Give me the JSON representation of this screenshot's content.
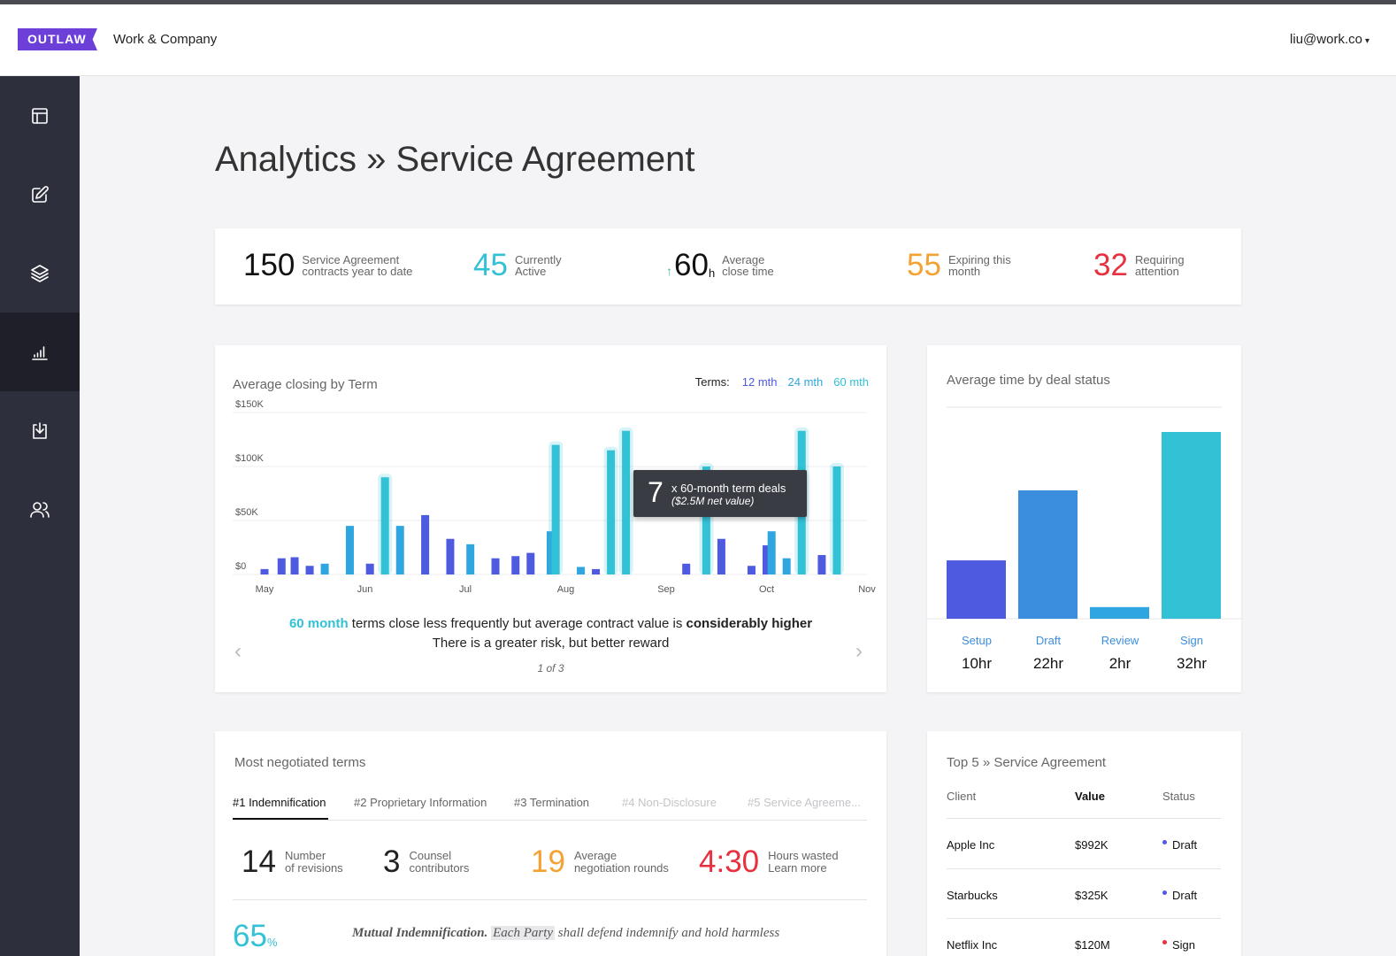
{
  "header": {
    "logo": "OUTLAW",
    "company": "Work & Company",
    "user": "liu@work.co",
    "user_caret": "▾"
  },
  "sidebar": {
    "items": [
      {
        "icon": "layout-icon"
      },
      {
        "icon": "edit-icon"
      },
      {
        "icon": "layers-icon"
      },
      {
        "icon": "analytics-icon",
        "active": true
      },
      {
        "icon": "download-icon"
      },
      {
        "icon": "users-icon"
      }
    ]
  },
  "page": {
    "title": "Analytics » Service Agreement"
  },
  "kpis": [
    {
      "value": "150",
      "label": "Service Agreement contracts year to date",
      "color": "#111111"
    },
    {
      "value": "45",
      "label": "Currently Active",
      "color": "#33c1d6"
    },
    {
      "value": "60",
      "unit": "h",
      "arrow": "↑",
      "label": "Average close time",
      "color": "#111111"
    },
    {
      "value": "55",
      "label": "Expiring this month",
      "color": "#f4a233"
    },
    {
      "value": "32",
      "label": "Requiring attention",
      "color": "#e8303f"
    }
  ],
  "closing_chart": {
    "title": "Average closing by Term",
    "terms_label": "Terms:",
    "terms": [
      {
        "label": "12 mth",
        "color": "#4e5ae0"
      },
      {
        "label": "24 mth",
        "color": "#2fa6e0"
      },
      {
        "label": "60 mth",
        "color": "#33c1d6"
      }
    ],
    "insight_highlight": "60 month",
    "insight_mid": " terms close less frequently but average contract value is ",
    "insight_bold": "considerably higher",
    "insight_line2": "There is a greater risk, but better reward",
    "pager": "1 of 3",
    "prev": "‹",
    "next": "›",
    "tooltip": {
      "count": "7",
      "line1": "x 60-month term deals",
      "line2": "($2.5M net value)"
    }
  },
  "chart_data": [
    {
      "type": "bar",
      "title": "Average closing by Term",
      "x": [
        "May",
        "Jun",
        "Jul",
        "Aug",
        "Sep",
        "Oct",
        "Nov"
      ],
      "y_ticks": [
        "$0",
        "$50K",
        "$100K",
        "$150K"
      ],
      "ylim": [
        0,
        150000
      ],
      "grid": true,
      "legend": "top-right",
      "series": [
        {
          "name": "12 mth",
          "color": "#4e5ae0",
          "points": [
            {
              "t": 0.0,
              "v": 5000
            },
            {
              "t": 0.17,
              "v": 15000
            },
            {
              "t": 0.3,
              "v": 16000
            },
            {
              "t": 0.45,
              "v": 8000
            },
            {
              "t": 1.05,
              "v": 10000
            },
            {
              "t": 1.6,
              "v": 55000
            },
            {
              "t": 1.85,
              "v": 33000
            },
            {
              "t": 2.3,
              "v": 15000
            },
            {
              "t": 2.5,
              "v": 17000
            },
            {
              "t": 2.65,
              "v": 20000
            },
            {
              "t": 3.3,
              "v": 5000
            },
            {
              "t": 4.2,
              "v": 10000
            },
            {
              "t": 4.55,
              "v": 33000
            },
            {
              "t": 4.85,
              "v": 8000
            },
            {
              "t": 5.0,
              "v": 27000
            },
            {
              "t": 5.55,
              "v": 18000
            },
            {
              "t": 6.35,
              "v": 7000
            },
            {
              "t": 6.5,
              "v": 5000
            }
          ]
        },
        {
          "name": "24 mth",
          "color": "#2fa6e0",
          "points": [
            {
              "t": 0.6,
              "v": 10000
            },
            {
              "t": 0.85,
              "v": 45000
            },
            {
              "t": 1.35,
              "v": 45000
            },
            {
              "t": 2.05,
              "v": 28000
            },
            {
              "t": 2.85,
              "v": 40000
            },
            {
              "t": 3.15,
              "v": 7000
            },
            {
              "t": 5.05,
              "v": 40000
            },
            {
              "t": 5.2,
              "v": 15000
            }
          ]
        },
        {
          "name": "60 mth",
          "color": "#33c1d6",
          "points": [
            {
              "t": 1.2,
              "v": 90000
            },
            {
              "t": 2.9,
              "v": 120000
            },
            {
              "t": 3.45,
              "v": 115000
            },
            {
              "t": 3.6,
              "v": 133000
            },
            {
              "t": 4.4,
              "v": 100000
            },
            {
              "t": 5.35,
              "v": 133000
            },
            {
              "t": 5.7,
              "v": 100000
            }
          ]
        }
      ]
    },
    {
      "type": "bar",
      "title": "Average time by deal status",
      "categories": [
        "Setup",
        "Draft",
        "Review",
        "Sign"
      ],
      "values": [
        10,
        22,
        2,
        32
      ],
      "value_labels": [
        "10hr",
        "22hr",
        "2hr",
        "32hr"
      ],
      "colors": [
        "#4e5ae0",
        "#3b8ede",
        "#2fa6e0",
        "#33c1d6"
      ],
      "ylim": [
        0,
        32
      ]
    }
  ],
  "status_chart": {
    "title": "Average time by deal status"
  },
  "terms_section": {
    "title": "Most negotiated terms",
    "tabs": [
      "#1 Indemnification",
      "#2 Proprietary Information",
      "#3 Termination",
      "#4 Non-Disclosure",
      "#5 Service Agreeme..."
    ],
    "stats": [
      {
        "value": "14",
        "l1": "Number",
        "l2": "of revisions",
        "color": "#111111"
      },
      {
        "value": "3",
        "l1": "Counsel",
        "l2": "contributors",
        "color": "#111111"
      },
      {
        "value": "19",
        "l1": "Average",
        "l2": "negotiation rounds",
        "color": "#f4a233"
      },
      {
        "value": "4:30",
        "l1": "Hours wasted",
        "l2": "Learn more",
        "color": "#e8303f"
      }
    ],
    "percent": "65",
    "percent_unit": "%",
    "clause_bold": "Mutual Indemnification.",
    "clause_hi": "Each Party",
    "clause_rest": " shall defend indemnify and hold harmless"
  },
  "top5": {
    "title": "Top 5 » Service Agreement",
    "headers": [
      "Client",
      "Value",
      "Status"
    ],
    "rows": [
      {
        "client": "Apple Inc",
        "value": "$992K",
        "status": "Draft",
        "dot": "#4e5ae0"
      },
      {
        "client": "Starbucks",
        "value": "$325K",
        "status": "Draft",
        "dot": "#4e5ae0"
      },
      {
        "client": "Netflix Inc",
        "value": "$120M",
        "status": "Sign",
        "dot": "#e8303f"
      }
    ]
  }
}
